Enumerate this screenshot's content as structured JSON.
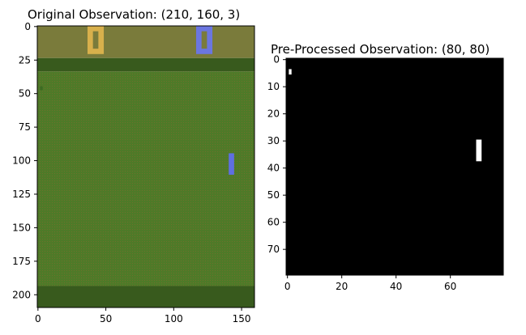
{
  "panels": [
    {
      "id": "original",
      "title": "Original Observation: (210, 160, 3)",
      "x_ticks": [
        0,
        50,
        100,
        150
      ],
      "y_ticks": [
        0,
        25,
        50,
        75,
        100,
        125,
        150,
        175,
        200
      ],
      "x_range": [
        0,
        160
      ],
      "y_range": [
        0,
        210
      ],
      "colors": {
        "score_bar": "#7a7b3b",
        "wall": "#385a1d",
        "field": "#4e7a28",
        "field_dots": "#8a6a30",
        "left_score": "#d8b04c",
        "right_score": "#6b76e0",
        "right_paddle": "#5f6fe0",
        "left_paddle": "#4e7a28"
      },
      "objects": [
        {
          "name": "left-score-digit",
          "x": [
            37,
            49
          ],
          "y": [
            0,
            21
          ],
          "color": "#d8b04c"
        },
        {
          "name": "right-score-digit",
          "x": [
            117,
            129
          ],
          "y": [
            0,
            21
          ],
          "color": "#6b76e0"
        },
        {
          "name": "right-paddle",
          "x": [
            141,
            145
          ],
          "y": [
            95,
            111
          ],
          "color": "#5f6fe0"
        },
        {
          "name": "left-paddle",
          "x": [
            2,
            4
          ],
          "y": [
            45,
            48
          ],
          "color": "#3b6b22"
        }
      ]
    },
    {
      "id": "preprocessed",
      "title": "Pre-Processed Observation:  (80, 80)",
      "x_ticks": [
        0,
        20,
        40,
        60
      ],
      "y_ticks": [
        0,
        10,
        20,
        30,
        40,
        50,
        60,
        70
      ],
      "x_range": [
        0,
        80
      ],
      "y_range": [
        0,
        80
      ],
      "colors": {
        "background": "#000000",
        "foreground": "#ffffff"
      },
      "objects": [
        {
          "name": "ball-pixel",
          "x": [
            1,
            2
          ],
          "y": [
            4,
            6
          ],
          "color": "#ffffff"
        },
        {
          "name": "paddle-pixels",
          "x": [
            70,
            72
          ],
          "y": [
            30,
            38
          ],
          "color": "#ffffff"
        }
      ]
    }
  ]
}
